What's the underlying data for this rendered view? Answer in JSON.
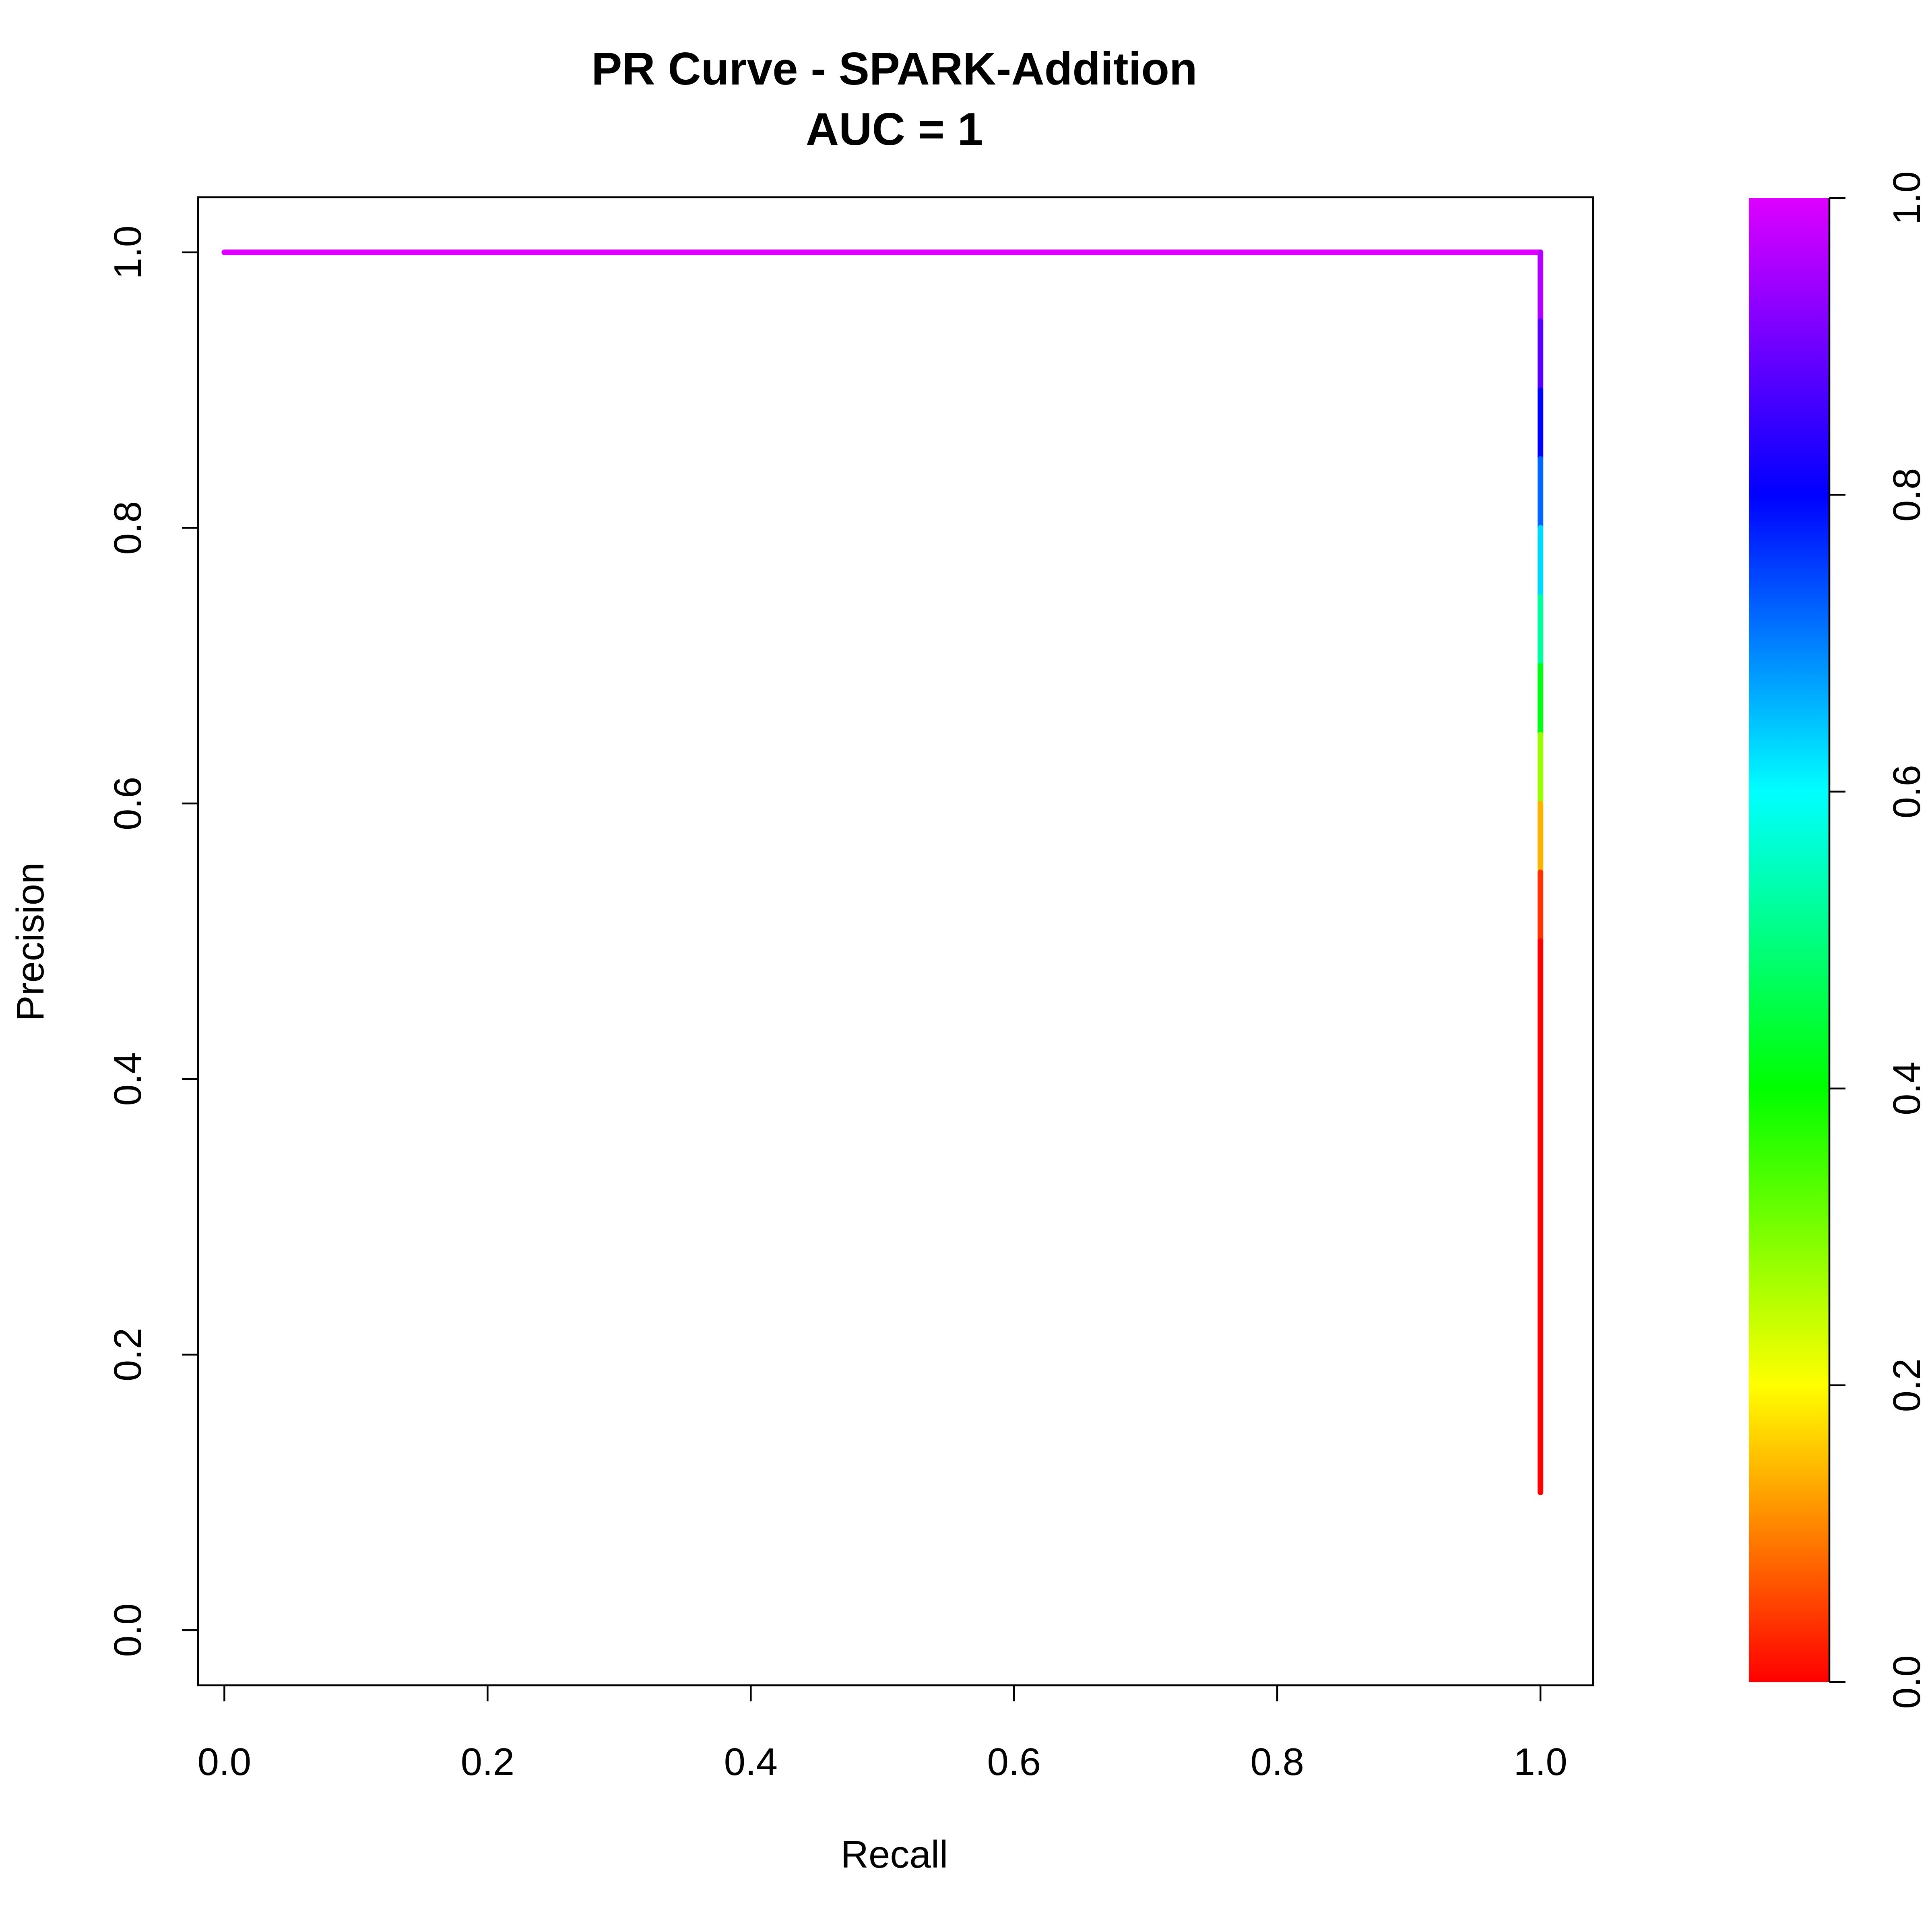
{
  "chart_data": {
    "type": "line",
    "title": "PR Curve - SPARK-Addition",
    "subtitle": "AUC = 1",
    "xlabel": "Recall",
    "ylabel": "Precision",
    "xlim": [
      -0.02,
      1.04
    ],
    "ylim": [
      -0.04,
      1.04
    ],
    "x_ticks": [
      "0.0",
      "0.2",
      "0.4",
      "0.6",
      "0.8",
      "1.0"
    ],
    "y_ticks": [
      "0.0",
      "0.2",
      "0.4",
      "0.6",
      "0.8",
      "1.0"
    ],
    "grid": false,
    "series": [
      {
        "points": [
          {
            "x": 0.0,
            "y": 1.0,
            "threshold": 1.0
          },
          {
            "x": 1.0,
            "y": 1.0,
            "threshold": 1.0
          },
          {
            "x": 1.0,
            "y": 0.95,
            "threshold": 0.92
          },
          {
            "x": 1.0,
            "y": 0.9,
            "threshold": 0.84
          },
          {
            "x": 1.0,
            "y": 0.85,
            "threshold": 0.76
          },
          {
            "x": 1.0,
            "y": 0.8,
            "threshold": 0.68
          },
          {
            "x": 1.0,
            "y": 0.75,
            "threshold": 0.58
          },
          {
            "x": 1.0,
            "y": 0.7,
            "threshold": 0.47
          },
          {
            "x": 1.0,
            "y": 0.65,
            "threshold": 0.36
          },
          {
            "x": 1.0,
            "y": 0.6,
            "threshold": 0.2
          },
          {
            "x": 1.0,
            "y": 0.55,
            "threshold": 0.08
          },
          {
            "x": 1.0,
            "y": 0.5,
            "threshold": 0.0
          },
          {
            "x": 1.0,
            "y": 0.1,
            "threshold": 0.0
          }
        ]
      }
    ],
    "colorbar": {
      "colormap": "rainbow",
      "range": [
        0.0,
        1.0
      ],
      "ticks": [
        "0.0",
        "0.2",
        "0.4",
        "0.6",
        "0.8",
        "1.0"
      ],
      "stops": [
        "#ff0000",
        "#ffff00",
        "#00ff00",
        "#00ffff",
        "#0000ff",
        "#dd00ff"
      ]
    }
  }
}
